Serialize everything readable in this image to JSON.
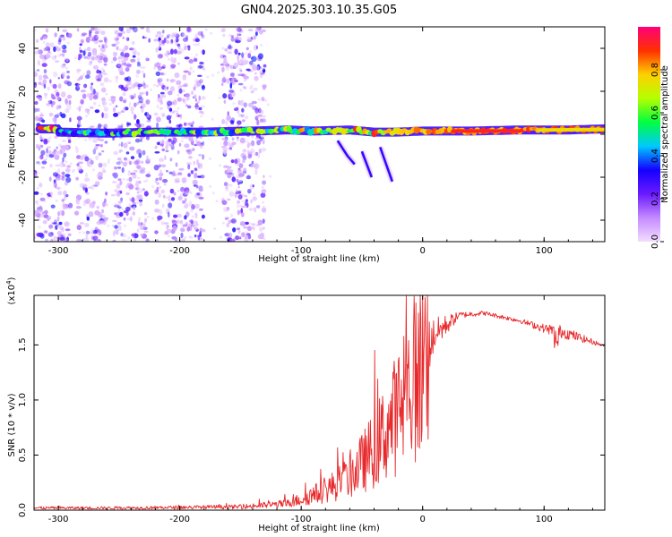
{
  "title": "GN04.2025.303.10.35.G05",
  "chart_data": [
    {
      "type": "heatmap",
      "name": "spectrogram",
      "xlabel": "Height of straight line (km)",
      "ylabel": "Frequency (Hz)",
      "xlim": [
        -320,
        150
      ],
      "ylim": [
        -50,
        50
      ],
      "xticks": [
        -300,
        -200,
        -100,
        0,
        100
      ],
      "yticks": [
        -40,
        -20,
        0,
        20,
        40
      ],
      "colorbar": {
        "label": "Normalized spectral amplitude",
        "ticks": [
          "0.0",
          "0.2",
          "0.4",
          "0.6",
          "0.8"
        ],
        "tick_values": [
          0,
          0.2,
          0.4,
          0.6,
          0.8
        ],
        "range": [
          0,
          1
        ],
        "stops": [
          "#f2ddff",
          "#c58aff",
          "#6a1aff",
          "#1400ff",
          "#00c8ff",
          "#00ff40",
          "#b4ff00",
          "#ffd000",
          "#ff3000",
          "#ff0078"
        ]
      },
      "ridge": [
        {
          "x": -300,
          "f": 1.0,
          "a": 0.45
        },
        {
          "x": -260,
          "f": 0.5,
          "a": 0.5
        },
        {
          "x": -220,
          "f": 1.0,
          "a": 0.5
        },
        {
          "x": -180,
          "f": 1.0,
          "a": 0.55
        },
        {
          "x": -140,
          "f": 1.5,
          "a": 0.6
        },
        {
          "x": -110,
          "f": 2.0,
          "a": 0.65
        },
        {
          "x": -90,
          "f": 1.5,
          "a": 0.7
        },
        {
          "x": -60,
          "f": 2.0,
          "a": 0.75
        },
        {
          "x": -40,
          "f": 1.0,
          "a": 0.8
        },
        {
          "x": -20,
          "f": 1.0,
          "a": 0.85
        },
        {
          "x": 0,
          "f": 1.5,
          "a": 0.9
        },
        {
          "x": 40,
          "f": 1.5,
          "a": 0.92
        },
        {
          "x": 80,
          "f": 2.0,
          "a": 0.95
        },
        {
          "x": 120,
          "f": 2.0,
          "a": 0.95
        },
        {
          "x": 150,
          "f": 2.5,
          "a": 0.95
        }
      ],
      "branches": [
        {
          "x": [
            -70,
            -62,
            -56
          ],
          "f": [
            -3,
            -10,
            -14
          ]
        },
        {
          "x": [
            -35,
            -30,
            -25
          ],
          "f": [
            -6,
            -14,
            -22
          ]
        },
        {
          "x": [
            -50,
            -42
          ],
          "f": [
            -8,
            -20
          ]
        }
      ],
      "noise_bands_x": [
        [
          -320,
          -290
        ],
        [
          -285,
          -260
        ],
        [
          -255,
          -225
        ],
        [
          -220,
          -180
        ],
        [
          -165,
          -130
        ]
      ]
    },
    {
      "type": "line",
      "name": "snr",
      "xlabel": "Height of straight line (km)",
      "ylabel": "SNR (10 * v/v)",
      "exponent_label": "(x10",
      "exponent_sup": "4",
      "exponent_close": ")",
      "xlim": [
        -320,
        150
      ],
      "ylim": [
        0,
        1.95
      ],
      "xticks": [
        -300,
        -200,
        -100,
        0,
        100
      ],
      "yticks": [
        "0.0",
        "0.5",
        "1.0",
        "1.5"
      ],
      "ytick_values": [
        0,
        0.5,
        1.0,
        1.5
      ],
      "color": "#e8292b",
      "envelope": [
        {
          "x": -320,
          "v": 0.02,
          "noise": 0.01
        },
        {
          "x": -250,
          "v": 0.02,
          "noise": 0.015
        },
        {
          "x": -150,
          "v": 0.03,
          "noise": 0.03
        },
        {
          "x": -110,
          "v": 0.06,
          "noise": 0.08
        },
        {
          "x": -80,
          "v": 0.18,
          "noise": 0.2
        },
        {
          "x": -60,
          "v": 0.3,
          "noise": 0.35
        },
        {
          "x": -40,
          "v": 0.55,
          "noise": 0.6
        },
        {
          "x": -20,
          "v": 0.9,
          "noise": 0.7
        },
        {
          "x": -5,
          "v": 1.25,
          "noise": 0.5
        },
        {
          "x": 10,
          "v": 1.6,
          "noise": 0.15
        },
        {
          "x": 30,
          "v": 1.77,
          "noise": 0.03
        },
        {
          "x": 50,
          "v": 1.79,
          "noise": 0.02
        },
        {
          "x": 80,
          "v": 1.72,
          "noise": 0.02
        },
        {
          "x": 100,
          "v": 1.65,
          "noise": 0.04
        },
        {
          "x": 115,
          "v": 1.62,
          "noise": 0.06
        },
        {
          "x": 150,
          "v": 1.49,
          "noise": 0.01
        }
      ]
    }
  ]
}
